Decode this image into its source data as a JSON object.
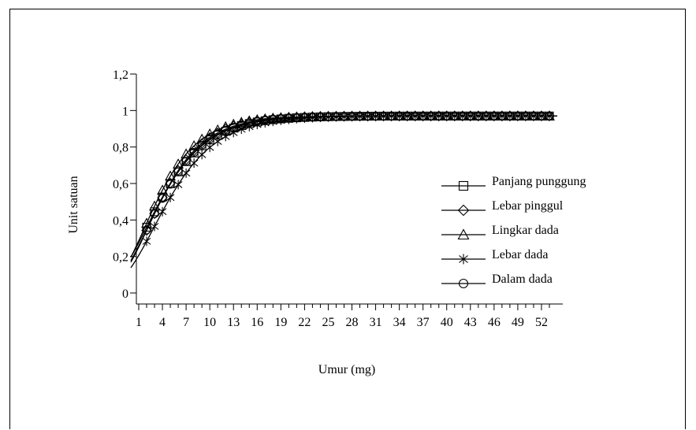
{
  "chart_data": {
    "type": "line",
    "xlabel": "Umur (mg)",
    "ylabel": "Unit satuan",
    "xlim": [
      1,
      54
    ],
    "ylim": [
      0,
      1.2
    ],
    "x_ticks": [
      "1",
      "4",
      "7",
      "10",
      "13",
      "16",
      "19",
      "22",
      "25",
      "28",
      "31",
      "34",
      "37",
      "40",
      "43",
      "46",
      "49",
      "52"
    ],
    "y_ticks": [
      {
        "value": 0,
        "label": "0"
      },
      {
        "value": 0.2,
        "label": "0,2"
      },
      {
        "value": 0.4,
        "label": "0,4"
      },
      {
        "value": 0.6,
        "label": "0,6"
      },
      {
        "value": 0.8,
        "label": "0,8"
      },
      {
        "value": 1,
        "label": "1"
      },
      {
        "value": 1.2,
        "label": "1,2"
      }
    ],
    "grid": false,
    "legend_position": "right",
    "series": [
      {
        "name": "Panjang punggung",
        "marker": "square",
        "params": {
          "b": 1.6,
          "k": 0.24
        }
      },
      {
        "name": "Lebar pinggul",
        "marker": "diamond",
        "params": {
          "b": 1.75,
          "k": 0.26
        }
      },
      {
        "name": "Lingkar dada",
        "marker": "triangle",
        "params": {
          "b": 1.6,
          "k": 0.27
        }
      },
      {
        "name": "Lebar dada",
        "marker": "star",
        "params": {
          "b": 1.95,
          "k": 0.23
        }
      },
      {
        "name": "Dalam dada",
        "marker": "circle",
        "params": {
          "b": 1.7,
          "k": 0.25
        }
      }
    ],
    "asymptote": 0.97
  }
}
